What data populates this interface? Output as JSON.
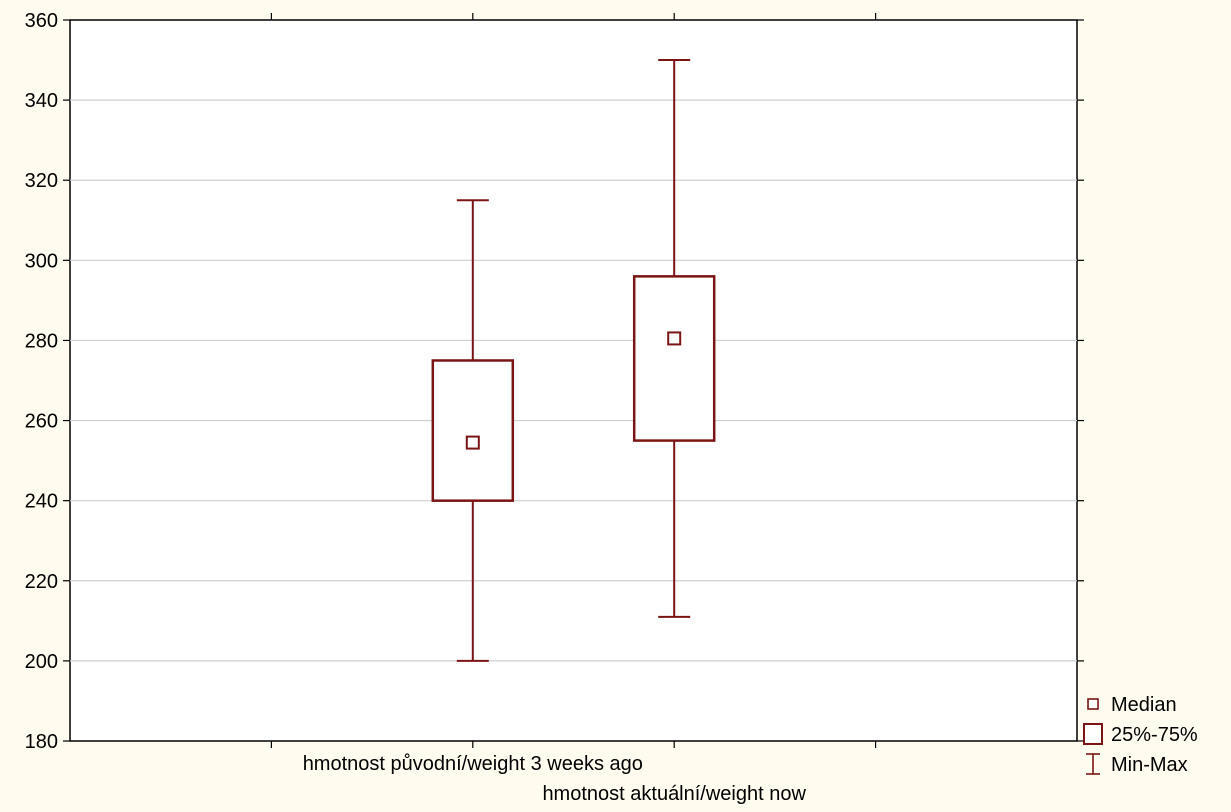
{
  "chart_data": {
    "type": "box",
    "title": "",
    "xlabel": "",
    "ylabel": "",
    "ylim": [
      180,
      360
    ],
    "yticks": [
      180,
      200,
      220,
      240,
      260,
      280,
      300,
      320,
      340,
      360
    ],
    "grid": true,
    "categories": [
      "hmotnost původní/weight 3 weeks ago",
      "hmotnost aktuální/weight now"
    ],
    "series": [
      {
        "min": 200,
        "q1": 240,
        "median": 254.5,
        "q3": 275,
        "max": 315
      },
      {
        "min": 211,
        "q1": 255,
        "median": 280.5,
        "q3": 296,
        "max": 350
      }
    ],
    "legend": {
      "position": "bottom-right",
      "items": [
        "Median",
        "25%-75%",
        "Min-Max"
      ]
    },
    "color": "#7b1414"
  }
}
